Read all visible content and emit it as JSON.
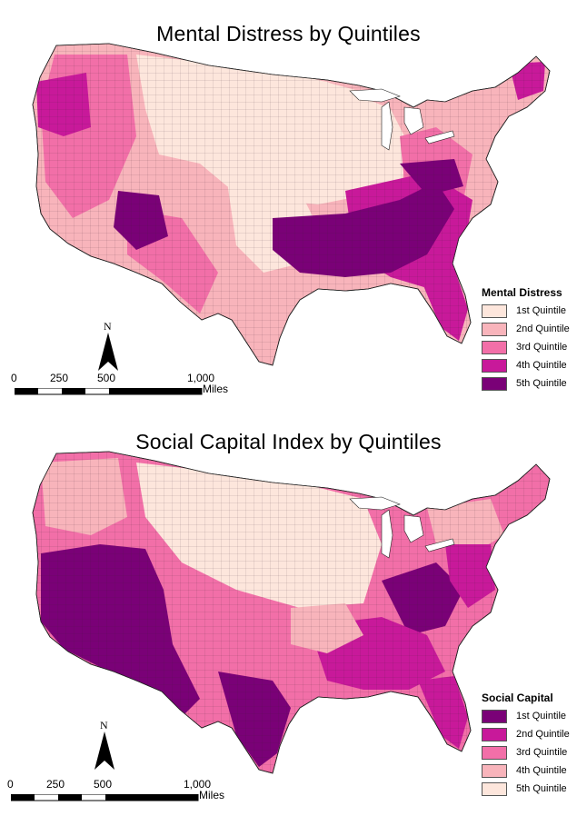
{
  "panels": [
    {
      "title": "Mental Distress by Quintiles",
      "legend": {
        "title": "Mental Distress",
        "items": [
          {
            "label": "1st Quintile",
            "color": "#fde6dc"
          },
          {
            "label": "2nd Quintile",
            "color": "#f8b4bb"
          },
          {
            "label": "3rd Quintile",
            "color": "#f26fa8"
          },
          {
            "label": "4th Quintile",
            "color": "#c8199a"
          },
          {
            "label": "5th Quintile",
            "color": "#7a0177"
          }
        ]
      },
      "north": "N",
      "scale": {
        "ticks": [
          "0",
          "250",
          "500",
          "1,000"
        ],
        "unit": "Miles"
      }
    },
    {
      "title": "Social Capital Index by Quintiles",
      "legend": {
        "title": "Social Capital",
        "items": [
          {
            "label": "1st Quintile",
            "color": "#7a0177"
          },
          {
            "label": "2nd Quintile",
            "color": "#c8199a"
          },
          {
            "label": "3rd Quintile",
            "color": "#f26fa8"
          },
          {
            "label": "4th Quintile",
            "color": "#f8b4bb"
          },
          {
            "label": "5th Quintile",
            "color": "#fde6dc"
          }
        ]
      },
      "north": "N",
      "scale": {
        "ticks": [
          "0",
          "250",
          "500",
          "1,000"
        ],
        "unit": "Miles"
      }
    }
  ]
}
